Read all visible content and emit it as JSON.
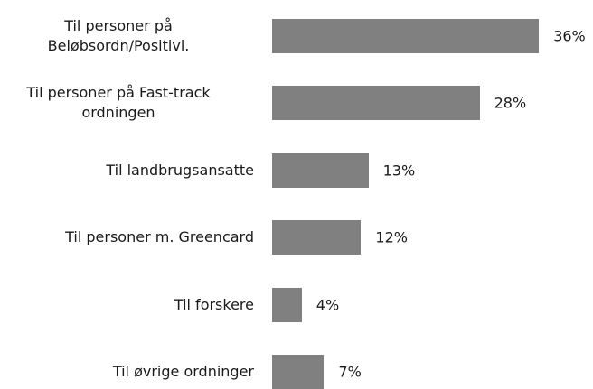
{
  "chart_data": {
    "type": "bar",
    "orientation": "horizontal",
    "categories": [
      "Til personer på\nBeløbsordn/Positivl.",
      "Til personer på Fast-track\nordningen",
      "Til landbrugsansatte",
      "Til personer m. Greencard",
      "Til forskere",
      "Til øvrige ordninger"
    ],
    "values": [
      36,
      28,
      13,
      12,
      4,
      7
    ],
    "value_labels": [
      "36%",
      "28%",
      "13%",
      "12%",
      "4%",
      "7%"
    ],
    "color": "#808080"
  }
}
